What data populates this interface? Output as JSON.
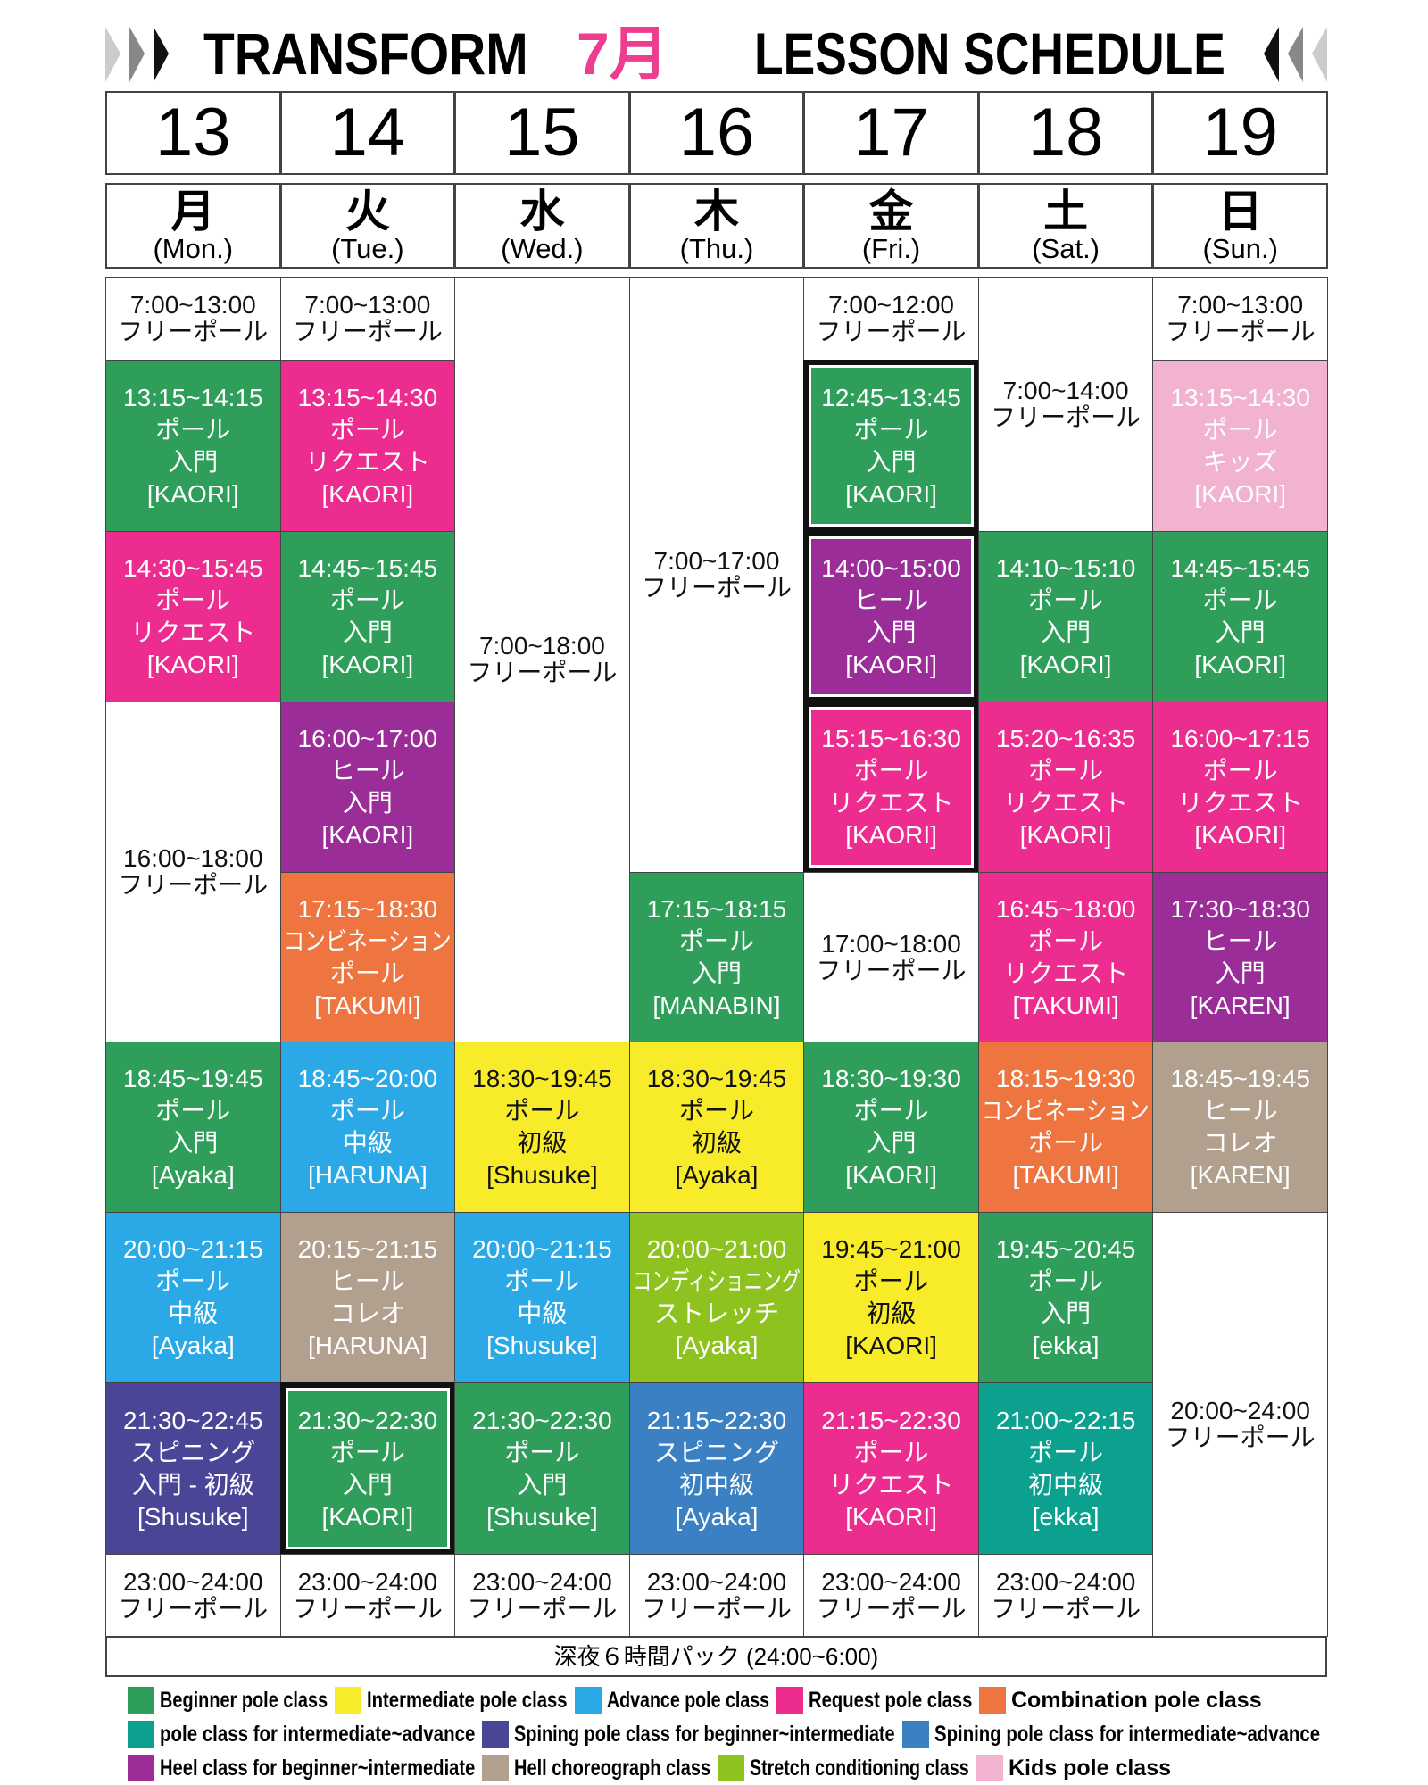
{
  "header": {
    "title_left": "TRANSFORM",
    "title_month": "7月",
    "title_right": "LESSON SCHEDULE"
  },
  "days": [
    {
      "date": "13",
      "day": "月",
      "en": "(Mon.)"
    },
    {
      "date": "14",
      "day": "火",
      "en": "(Tue.)"
    },
    {
      "date": "15",
      "day": "水",
      "en": "(Wed.)"
    },
    {
      "date": "16",
      "day": "木",
      "en": "(Thu.)"
    },
    {
      "date": "17",
      "day": "金",
      "en": "(Fri.)"
    },
    {
      "date": "18",
      "day": "土",
      "en": "(Sat.)"
    },
    {
      "date": "19",
      "day": "日",
      "en": "(Sun.)"
    }
  ],
  "columns": [
    {
      "cells": [
        {
          "lines": [
            "7:00~13:00",
            "フリーポール"
          ],
          "color": "#ffffff"
        },
        {
          "lines": [
            "13:15~14:15",
            "ポール",
            "入門",
            "[KAORI]"
          ],
          "color": "#2e9e5a"
        },
        {
          "lines": [
            "14:30~15:45",
            "ポール",
            "リクエスト",
            "[KAORI]"
          ],
          "color": "#ec2d8f"
        },
        {
          "lines": [
            "16:00~18:00",
            "フリーポール"
          ],
          "color": "#ffffff"
        },
        {
          "lines": [
            "18:45~19:45",
            "ポール",
            "入門",
            "[Ayaka]"
          ],
          "color": "#2e9e5a"
        },
        {
          "lines": [
            "20:00~21:15",
            "ポール",
            "中級",
            "[Ayaka]"
          ],
          "color": "#2aa9e6"
        },
        {
          "lines": [
            "21:30~22:45",
            "スピニング",
            "入門 - 初級",
            "[Shusuke]"
          ],
          "color": "#4b4597"
        },
        {
          "lines": [
            "23:00~24:00",
            "フリーポール"
          ],
          "color": "#ffffff"
        }
      ]
    },
    {
      "cells": [
        {
          "lines": [
            "7:00~13:00",
            "フリーポール"
          ],
          "color": "#ffffff"
        },
        {
          "lines": [
            "13:15~14:30",
            "ポール",
            "リクエスト",
            "[KAORI]"
          ],
          "color": "#ec2d8f"
        },
        {
          "lines": [
            "14:45~15:45",
            "ポール",
            "入門",
            "[KAORI]"
          ],
          "color": "#2e9e5a"
        },
        {
          "lines": [
            "16:00~17:00",
            "ヒール",
            "入門",
            "[KAORI]"
          ],
          "color": "#9b2d99"
        },
        {
          "lines": [
            "17:15~18:30",
            "コンビネーション",
            "ポール",
            "[TAKUMI]"
          ],
          "color": "#ee7440"
        },
        {
          "lines": [
            "18:45~20:00",
            "ポール",
            "中級",
            "[HARUNA]"
          ],
          "color": "#2aa9e6"
        },
        {
          "lines": [
            "20:15~21:15",
            "ヒール",
            "コレオ",
            "[HARUNA]"
          ],
          "color": "#b2a08e"
        },
        {
          "lines": [
            "21:30~22:30",
            "ポール",
            "入門",
            "[KAORI]"
          ],
          "color": "#2e9e5a",
          "highlight": true
        },
        {
          "lines": [
            "23:00~24:00",
            "フリーポール"
          ],
          "color": "#ffffff"
        }
      ]
    },
    {
      "cells": [
        {
          "lines": [
            "7:00~18:00",
            "フリーポール"
          ],
          "color": "#ffffff"
        },
        {
          "lines": [
            "18:30~19:45",
            "ポール",
            "初級",
            "[Shusuke]"
          ],
          "color": "#f8ec2a"
        },
        {
          "lines": [
            "20:00~21:15",
            "ポール",
            "中級",
            "[Shusuke]"
          ],
          "color": "#2aa9e6"
        },
        {
          "lines": [
            "21:30~22:30",
            "ポール",
            "入門",
            "[Shusuke]"
          ],
          "color": "#2e9e5a"
        },
        {
          "lines": [
            "23:00~24:00",
            "フリーポール"
          ],
          "color": "#ffffff"
        }
      ]
    },
    {
      "cells": [
        {
          "lines": [
            "7:00~17:00",
            "フリーポール"
          ],
          "color": "#ffffff"
        },
        {
          "lines": [
            "17:15~18:15",
            "ポール",
            "入門",
            "[MANABIN]"
          ],
          "color": "#2e9e5a"
        },
        {
          "lines": [
            "18:30~19:45",
            "ポール",
            "初級",
            "[Ayaka]"
          ],
          "color": "#f8ec2a"
        },
        {
          "lines": [
            "20:00~21:00",
            "コンディショニング",
            "ストレッチ",
            "[Ayaka]"
          ],
          "color": "#8ec31f"
        },
        {
          "lines": [
            "21:15~22:30",
            "スピニング",
            "初中級",
            "[Ayaka]"
          ],
          "color": "#3a80c3"
        },
        {
          "lines": [
            "23:00~24:00",
            "フリーポール"
          ],
          "color": "#ffffff"
        }
      ]
    },
    {
      "cells": [
        {
          "lines": [
            "7:00~12:00",
            "フリーポール"
          ],
          "color": "#ffffff"
        },
        {
          "lines": [
            "12:45~13:45",
            "ポール",
            "入門",
            "[KAORI]"
          ],
          "color": "#2e9e5a",
          "highlight": true
        },
        {
          "lines": [
            "14:00~15:00",
            "ヒール",
            "入門",
            "[KAORI]"
          ],
          "color": "#9b2d99",
          "highlight": true
        },
        {
          "lines": [
            "15:15~16:30",
            "ポール",
            "リクエスト",
            "[KAORI]"
          ],
          "color": "#ec2d8f",
          "highlight": true
        },
        {
          "lines": [
            "17:00~18:00",
            "フリーポール"
          ],
          "color": "#ffffff"
        },
        {
          "lines": [
            "18:30~19:30",
            "ポール",
            "入門",
            "[KAORI]"
          ],
          "color": "#2e9e5a"
        },
        {
          "lines": [
            "19:45~21:00",
            "ポール",
            "初級",
            "[KAORI]"
          ],
          "color": "#f8ec2a"
        },
        {
          "lines": [
            "21:15~22:30",
            "ポール",
            "リクエスト",
            "[KAORI]"
          ],
          "color": "#ec2d8f"
        },
        {
          "lines": [
            "23:00~24:00",
            "フリーポール"
          ],
          "color": "#ffffff"
        }
      ]
    },
    {
      "cells": [
        {
          "lines": [
            "7:00~14:00",
            "フリーポール"
          ],
          "color": "#ffffff"
        },
        {
          "lines": [
            "14:10~15:10",
            "ポール",
            "入門",
            "[KAORI]"
          ],
          "color": "#2e9e5a"
        },
        {
          "lines": [
            "15:20~16:35",
            "ポール",
            "リクエスト",
            "[KAORI]"
          ],
          "color": "#ec2d8f"
        },
        {
          "lines": [
            "16:45~18:00",
            "ポール",
            "リクエスト",
            "[TAKUMI]"
          ],
          "color": "#ec2d8f"
        },
        {
          "lines": [
            "18:15~19:30",
            "コンビネーション",
            "ポール",
            "[TAKUMI]"
          ],
          "color": "#ee7440"
        },
        {
          "lines": [
            "19:45~20:45",
            "ポール",
            "入門",
            "[ekka]"
          ],
          "color": "#2e9e5a"
        },
        {
          "lines": [
            "21:00~22:15",
            "ポール",
            "初中級",
            "[ekka]"
          ],
          "color": "#0ca08f"
        },
        {
          "lines": [
            "23:00~24:00",
            "フリーポール"
          ],
          "color": "#ffffff"
        }
      ]
    },
    {
      "cells": [
        {
          "lines": [
            "7:00~13:00",
            "フリーポール"
          ],
          "color": "#ffffff"
        },
        {
          "lines": [
            "13:15~14:30",
            "ポール",
            "キッズ",
            "[KAORI]"
          ],
          "color": "#f1b3cf"
        },
        {
          "lines": [
            "14:45~15:45",
            "ポール",
            "入門",
            "[KAORI]"
          ],
          "color": "#2e9e5a"
        },
        {
          "lines": [
            "16:00~17:15",
            "ポール",
            "リクエスト",
            "[KAORI]"
          ],
          "color": "#ec2d8f"
        },
        {
          "lines": [
            "17:30~18:30",
            "ヒール",
            "入門",
            "[KAREN]"
          ],
          "color": "#9b2d99"
        },
        {
          "lines": [
            "18:45~19:45",
            "ヒール",
            "コレオ",
            "[KAREN]"
          ],
          "color": "#b2a08e"
        },
        {
          "lines": [
            "20:00~24:00",
            "フリーポール"
          ],
          "color": "#ffffff"
        }
      ]
    }
  ],
  "footer": "深夜６時間パック (24:00~6:00)",
  "legend": [
    {
      "label": "Beginner pole class",
      "color": "#2e9e5a"
    },
    {
      "label": "Intermediate pole class",
      "color": "#f8ec2a"
    },
    {
      "label": "Advance pole class",
      "color": "#2aa9e6"
    },
    {
      "label": "Request pole class",
      "color": "#ec2d8f"
    },
    {
      "label": "Combination pole class",
      "color": "#ee7440"
    },
    {
      "label": "pole class for intermediate~advance",
      "color": "#0ca08f"
    },
    {
      "label": "Spining pole class for beginner~intermediate",
      "color": "#4b4597"
    },
    {
      "label": "Spining pole class for intermediate~advance",
      "color": "#3a80c3"
    },
    {
      "label": "Heel class for beginner~intermediate",
      "color": "#9b2d99"
    },
    {
      "label": "Hell choreograph class",
      "color": "#b2a08e"
    },
    {
      "label": "Stretch conditioning class",
      "color": "#8ec31f"
    },
    {
      "label": "Kids pole class",
      "color": "#f1b3cf"
    }
  ]
}
